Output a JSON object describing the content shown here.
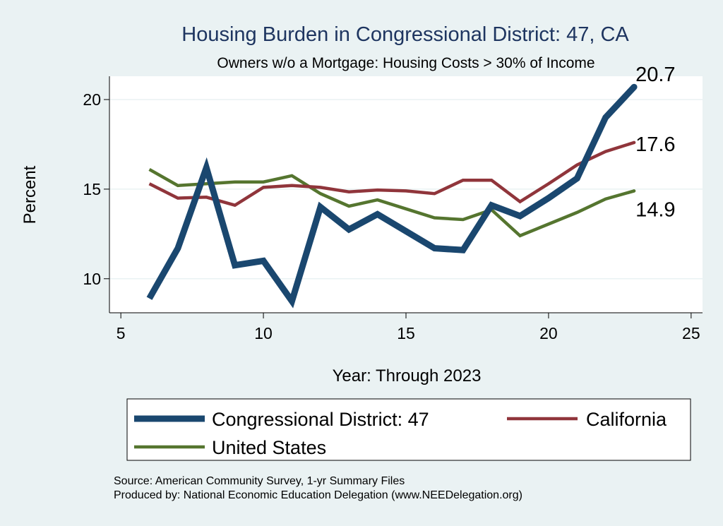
{
  "chart_data": {
    "type": "line",
    "title": "Housing Burden in Congressional District:  47, CA",
    "subtitle": "Owners w/o a Mortgage: Housing Costs > 30% of Income",
    "xlabel": "Year: Through 2023",
    "ylabel": "Percent",
    "xlim": [
      4.6,
      25.4
    ],
    "ylim": [
      8.1,
      21.3
    ],
    "xticks": [
      5,
      10,
      15,
      20,
      25
    ],
    "yticks": [
      10,
      15,
      20
    ],
    "grid": true,
    "legend_placement": "bottom",
    "x": [
      6,
      7,
      8,
      9,
      10,
      11,
      12,
      13,
      14,
      15,
      16,
      17,
      18,
      19,
      20,
      21,
      22,
      23
    ],
    "series": [
      {
        "name": "Congressional District:  47",
        "color": "#1a476f",
        "width": 9,
        "values": [
          8.9,
          11.7,
          16.2,
          10.75,
          11.0,
          8.75,
          14.0,
          12.75,
          13.6,
          12.65,
          11.7,
          11.6,
          14.1,
          13.5,
          14.5,
          15.6,
          19.0,
          20.7
        ],
        "end_label": "20.7"
      },
      {
        "name": "California",
        "color": "#90353b",
        "width": 4.5,
        "values": [
          15.3,
          14.5,
          14.55,
          14.1,
          15.1,
          15.2,
          15.1,
          14.85,
          14.95,
          14.9,
          14.75,
          15.5,
          15.5,
          14.3,
          15.3,
          16.35,
          17.1,
          17.6
        ],
        "end_label": "17.6"
      },
      {
        "name": "United States",
        "color": "#55752f",
        "width": 4.5,
        "values": [
          16.1,
          15.2,
          15.3,
          15.4,
          15.4,
          15.75,
          14.75,
          14.05,
          14.4,
          13.9,
          13.4,
          13.3,
          13.85,
          12.4,
          13.05,
          13.7,
          14.45,
          14.9
        ],
        "end_label": "14.9"
      }
    ],
    "notes": [
      "Source: American Community Survey, 1-yr Summary Files",
      "Produced by: National Economic Education Delegation (www.NEEDelegation.org)"
    ]
  }
}
